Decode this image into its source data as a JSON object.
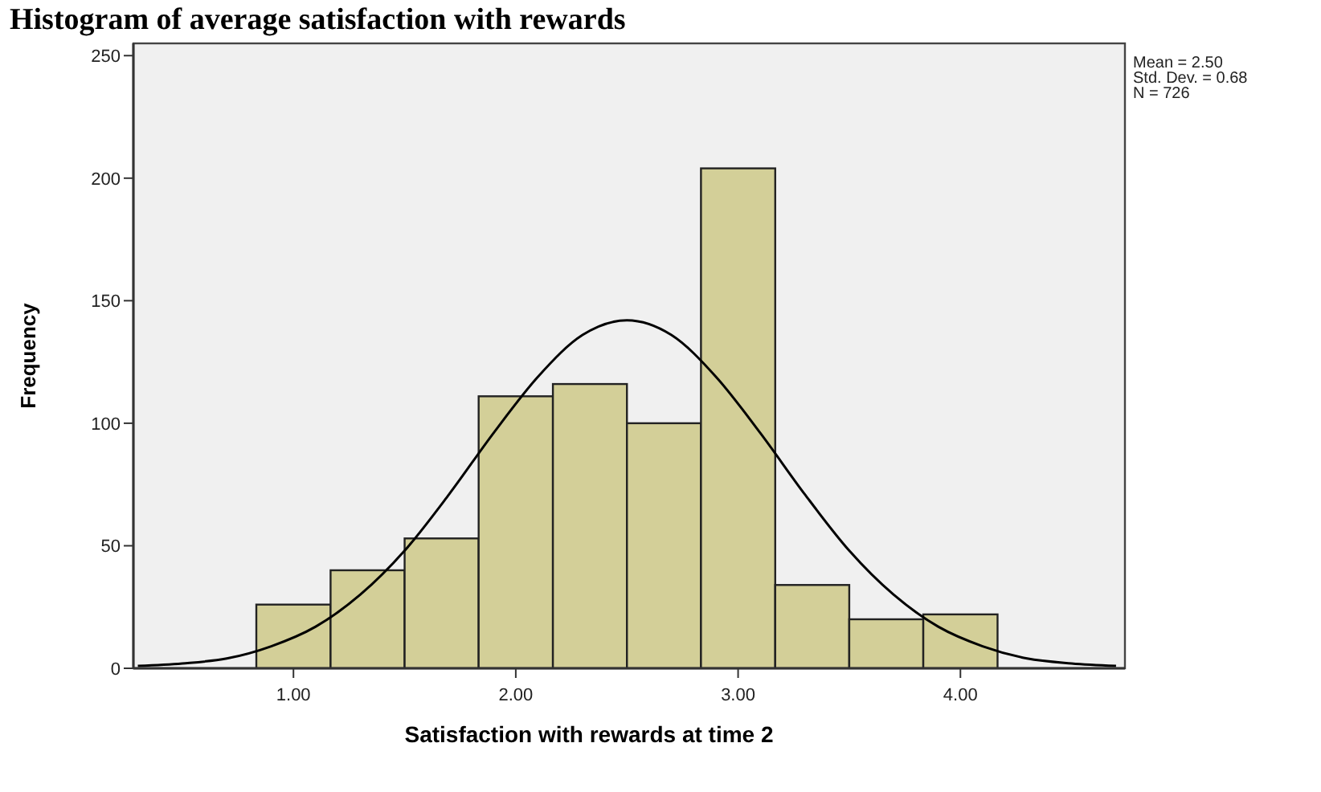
{
  "chart_data": {
    "type": "histogram",
    "title": "Histogram of average satisfaction with rewards",
    "xlabel": "Satisfaction with rewards at time 2",
    "ylabel": "Frequency",
    "bins": [
      0.833,
      1.167,
      1.5,
      1.833,
      2.167,
      2.5,
      2.833,
      3.167,
      3.5,
      3.833,
      4.167
    ],
    "series": [
      {
        "color": "#d3cf98",
        "values": [
          26,
          40,
          53,
          111,
          116,
          100,
          204,
          34,
          20,
          22
        ]
      },
      {
        "type": "line",
        "color": "#000000",
        "x": [
          0.3,
          0.5,
          0.7,
          0.9,
          1.1,
          1.3,
          1.5,
          1.7,
          1.9,
          2.1,
          2.3,
          2.5,
          2.7,
          2.9,
          3.1,
          3.3,
          3.5,
          3.7,
          3.9,
          4.1,
          4.3,
          4.5,
          4.7
        ],
        "values": [
          1,
          2,
          4,
          9,
          17,
          30,
          48,
          71,
          96,
          119,
          136,
          142,
          136,
          119,
          96,
          71,
          48,
          30,
          17,
          9,
          4,
          2,
          1
        ]
      }
    ],
    "xlim": [
      0.28,
      4.74
    ],
    "ylim": [
      0,
      255
    ],
    "xticks": [
      {
        "value": 1,
        "label": "1.00"
      },
      {
        "value": 2,
        "label": "2.00"
      },
      {
        "value": 3,
        "label": "3.00"
      },
      {
        "value": 4,
        "label": "4.00"
      }
    ],
    "yticks": [
      0,
      50,
      100,
      150,
      200,
      250
    ],
    "grid": false,
    "annotations": [
      "Mean = 2.50",
      "Std. Dev. = 0.68",
      "N = 726"
    ]
  }
}
